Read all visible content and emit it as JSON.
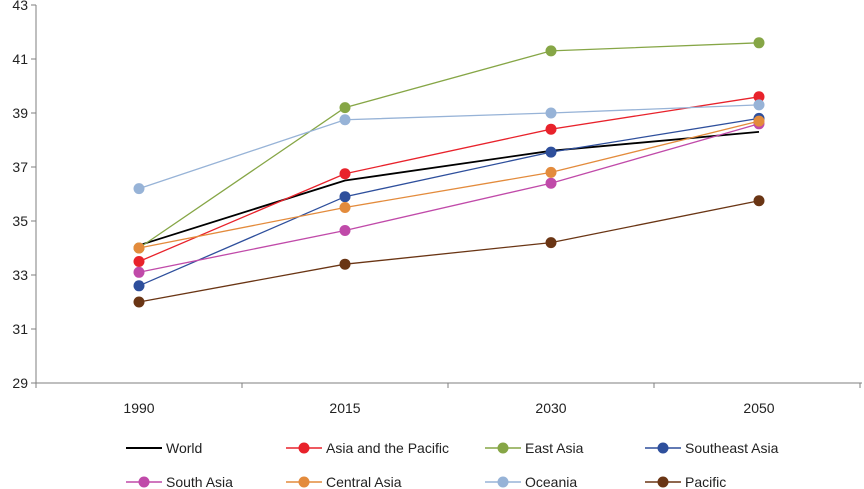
{
  "chart_data": {
    "type": "line",
    "title": "",
    "xlabel": "",
    "ylabel": "",
    "categories": [
      "1990",
      "2015",
      "2030",
      "2050"
    ],
    "ylim": [
      29,
      43
    ],
    "yticks": [
      "29",
      "31",
      "33",
      "35",
      "37",
      "39",
      "41",
      "43"
    ],
    "grid": false,
    "legend_position": "bottom",
    "series": [
      {
        "name": "World",
        "color": "#000000",
        "markers": false,
        "values": [
          34.1,
          36.5,
          37.6,
          38.3
        ]
      },
      {
        "name": "Asia and the Pacific",
        "color": "#e8222b",
        "markers": true,
        "values": [
          33.5,
          36.75,
          38.4,
          39.6
        ]
      },
      {
        "name": "East Asia",
        "color": "#86a646",
        "markers": true,
        "values": [
          34.0,
          39.2,
          41.3,
          41.6
        ]
      },
      {
        "name": "Southeast Asia",
        "color": "#2e4f9c",
        "markers": true,
        "values": [
          32.6,
          35.9,
          37.55,
          38.8
        ]
      },
      {
        "name": "South Asia",
        "color": "#c04aa9",
        "markers": true,
        "values": [
          33.1,
          34.65,
          36.4,
          38.6
        ]
      },
      {
        "name": "Central Asia",
        "color": "#e38b3c",
        "markers": true,
        "values": [
          34.0,
          35.5,
          36.8,
          38.7
        ]
      },
      {
        "name": "Oceania",
        "color": "#97b3d7",
        "markers": true,
        "values": [
          36.2,
          38.75,
          39.0,
          39.3
        ]
      },
      {
        "name": "Pacific",
        "color": "#6a3514",
        "markers": true,
        "values": [
          32.0,
          33.4,
          34.2,
          35.75
        ]
      }
    ]
  }
}
